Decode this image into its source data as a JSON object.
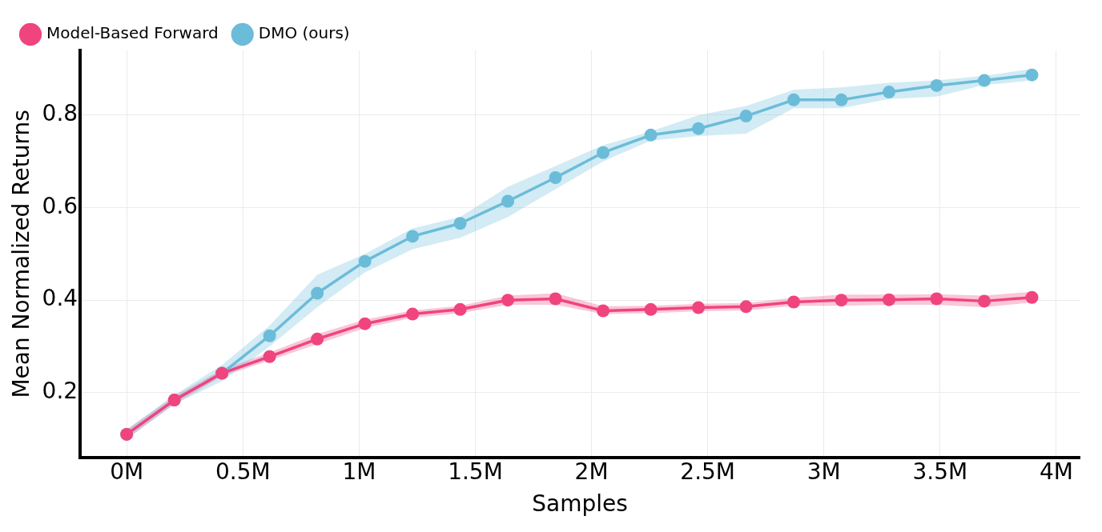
{
  "chart_data": {
    "type": "line",
    "xlabel": "Samples",
    "ylabel": "Mean Normalized Returns",
    "x": [
      0,
      0.205,
      0.41,
      0.615,
      0.82,
      1.025,
      1.23,
      1.435,
      1.64,
      1.845,
      2.05,
      2.255,
      2.46,
      2.665,
      2.87,
      3.075,
      3.28,
      3.485,
      3.69,
      3.895
    ],
    "series": [
      {
        "name": "DMO (ours)",
        "color": "#6bbcd9",
        "values": [
          0.11,
          0.184,
          0.242,
          0.323,
          0.415,
          0.484,
          0.538,
          0.566,
          0.614,
          0.665,
          0.719,
          0.757,
          0.771,
          0.798,
          0.833,
          0.833,
          0.85,
          0.864,
          0.875,
          0.887
        ],
        "lower": [
          0.1,
          0.175,
          0.225,
          0.3,
          0.385,
          0.46,
          0.51,
          0.535,
          0.58,
          0.64,
          0.7,
          0.745,
          0.755,
          0.76,
          0.815,
          0.815,
          0.835,
          0.84,
          0.865,
          0.875
        ],
        "upper": [
          0.12,
          0.195,
          0.26,
          0.345,
          0.455,
          0.5,
          0.555,
          0.58,
          0.645,
          0.69,
          0.735,
          0.765,
          0.8,
          0.82,
          0.855,
          0.86,
          0.87,
          0.875,
          0.885,
          0.9
        ]
      },
      {
        "name": "Model-Based Forward",
        "color": "#f0447f",
        "values": [
          0.11,
          0.184,
          0.242,
          0.278,
          0.316,
          0.349,
          0.37,
          0.38,
          0.4,
          0.403,
          0.377,
          0.38,
          0.384,
          0.386,
          0.396,
          0.4,
          0.401,
          0.403,
          0.398,
          0.406
        ],
        "lower": [
          0.1,
          0.175,
          0.235,
          0.27,
          0.305,
          0.34,
          0.362,
          0.372,
          0.39,
          0.39,
          0.37,
          0.372,
          0.376,
          0.378,
          0.388,
          0.388,
          0.39,
          0.39,
          0.385,
          0.395
        ],
        "upper": [
          0.12,
          0.193,
          0.25,
          0.287,
          0.327,
          0.358,
          0.378,
          0.388,
          0.41,
          0.415,
          0.387,
          0.388,
          0.392,
          0.394,
          0.405,
          0.412,
          0.412,
          0.413,
          0.41,
          0.418
        ]
      }
    ],
    "xlim": [
      -0.2,
      4.1
    ],
    "xticks": [
      {
        "value": 0,
        "label": "0M"
      },
      {
        "value": 0.5,
        "label": "0.5M"
      },
      {
        "value": 1,
        "label": "1M"
      },
      {
        "value": 1.5,
        "label": "1.5M"
      },
      {
        "value": 2,
        "label": "2M"
      },
      {
        "value": 2.5,
        "label": "2.5M"
      },
      {
        "value": 3,
        "label": "3M"
      },
      {
        "value": 3.5,
        "label": "3.5M"
      },
      {
        "value": 4,
        "label": "4M"
      }
    ],
    "ylim": [
      0.06,
      0.94
    ],
    "yticks": [
      0.2,
      0.4,
      0.6,
      0.8
    ],
    "grid": true,
    "legend": "top left",
    "marker": "circle",
    "line_style": "solid"
  }
}
